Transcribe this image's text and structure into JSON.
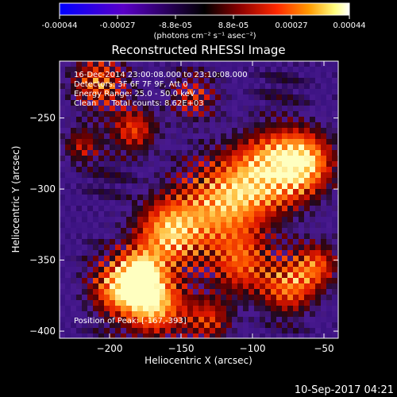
{
  "colorbar": {
    "tick_labels": [
      "-0.00044",
      "-0.00027",
      "-8.8e-05",
      "8.8e-05",
      "0.00027",
      "0.00044"
    ],
    "unit_label": "(photons cm⁻² s⁻¹ asec⁻²)",
    "range": [
      -0.00044,
      0.00044
    ],
    "colors": [
      "#0000ff",
      "#5a00c8",
      "#000000",
      "#8a0000",
      "#ff2800",
      "#ff9a00",
      "#ffff80",
      "#ffffff"
    ]
  },
  "chart_data": {
    "type": "heatmap",
    "title": "Reconstructed RHESSI Image",
    "xlabel": "Heliocentric X (arcsec)",
    "ylabel": "Heliocentric Y (arcsec)",
    "xlim": [
      -235,
      -40
    ],
    "ylim": [
      -405,
      -210
    ],
    "x_ticks": [
      -200,
      -150,
      -100,
      -50
    ],
    "y_ticks": [
      -250,
      -300,
      -350,
      -400
    ],
    "info_lines": [
      "16-Dec-2014 23:00:08.000 to 23:10:08.000",
      "Detectors: 3F 6F 7F 9F, Att 0",
      "Energy Range: 25.0 - 50.0 keV",
      "Clean      Total counts: 8.62E+03"
    ],
    "peak_label": "Position of Peak: [-167,-393]",
    "peak": [
      -167,
      -393
    ]
  },
  "timestamp": "10-Sep-2017 04:21"
}
